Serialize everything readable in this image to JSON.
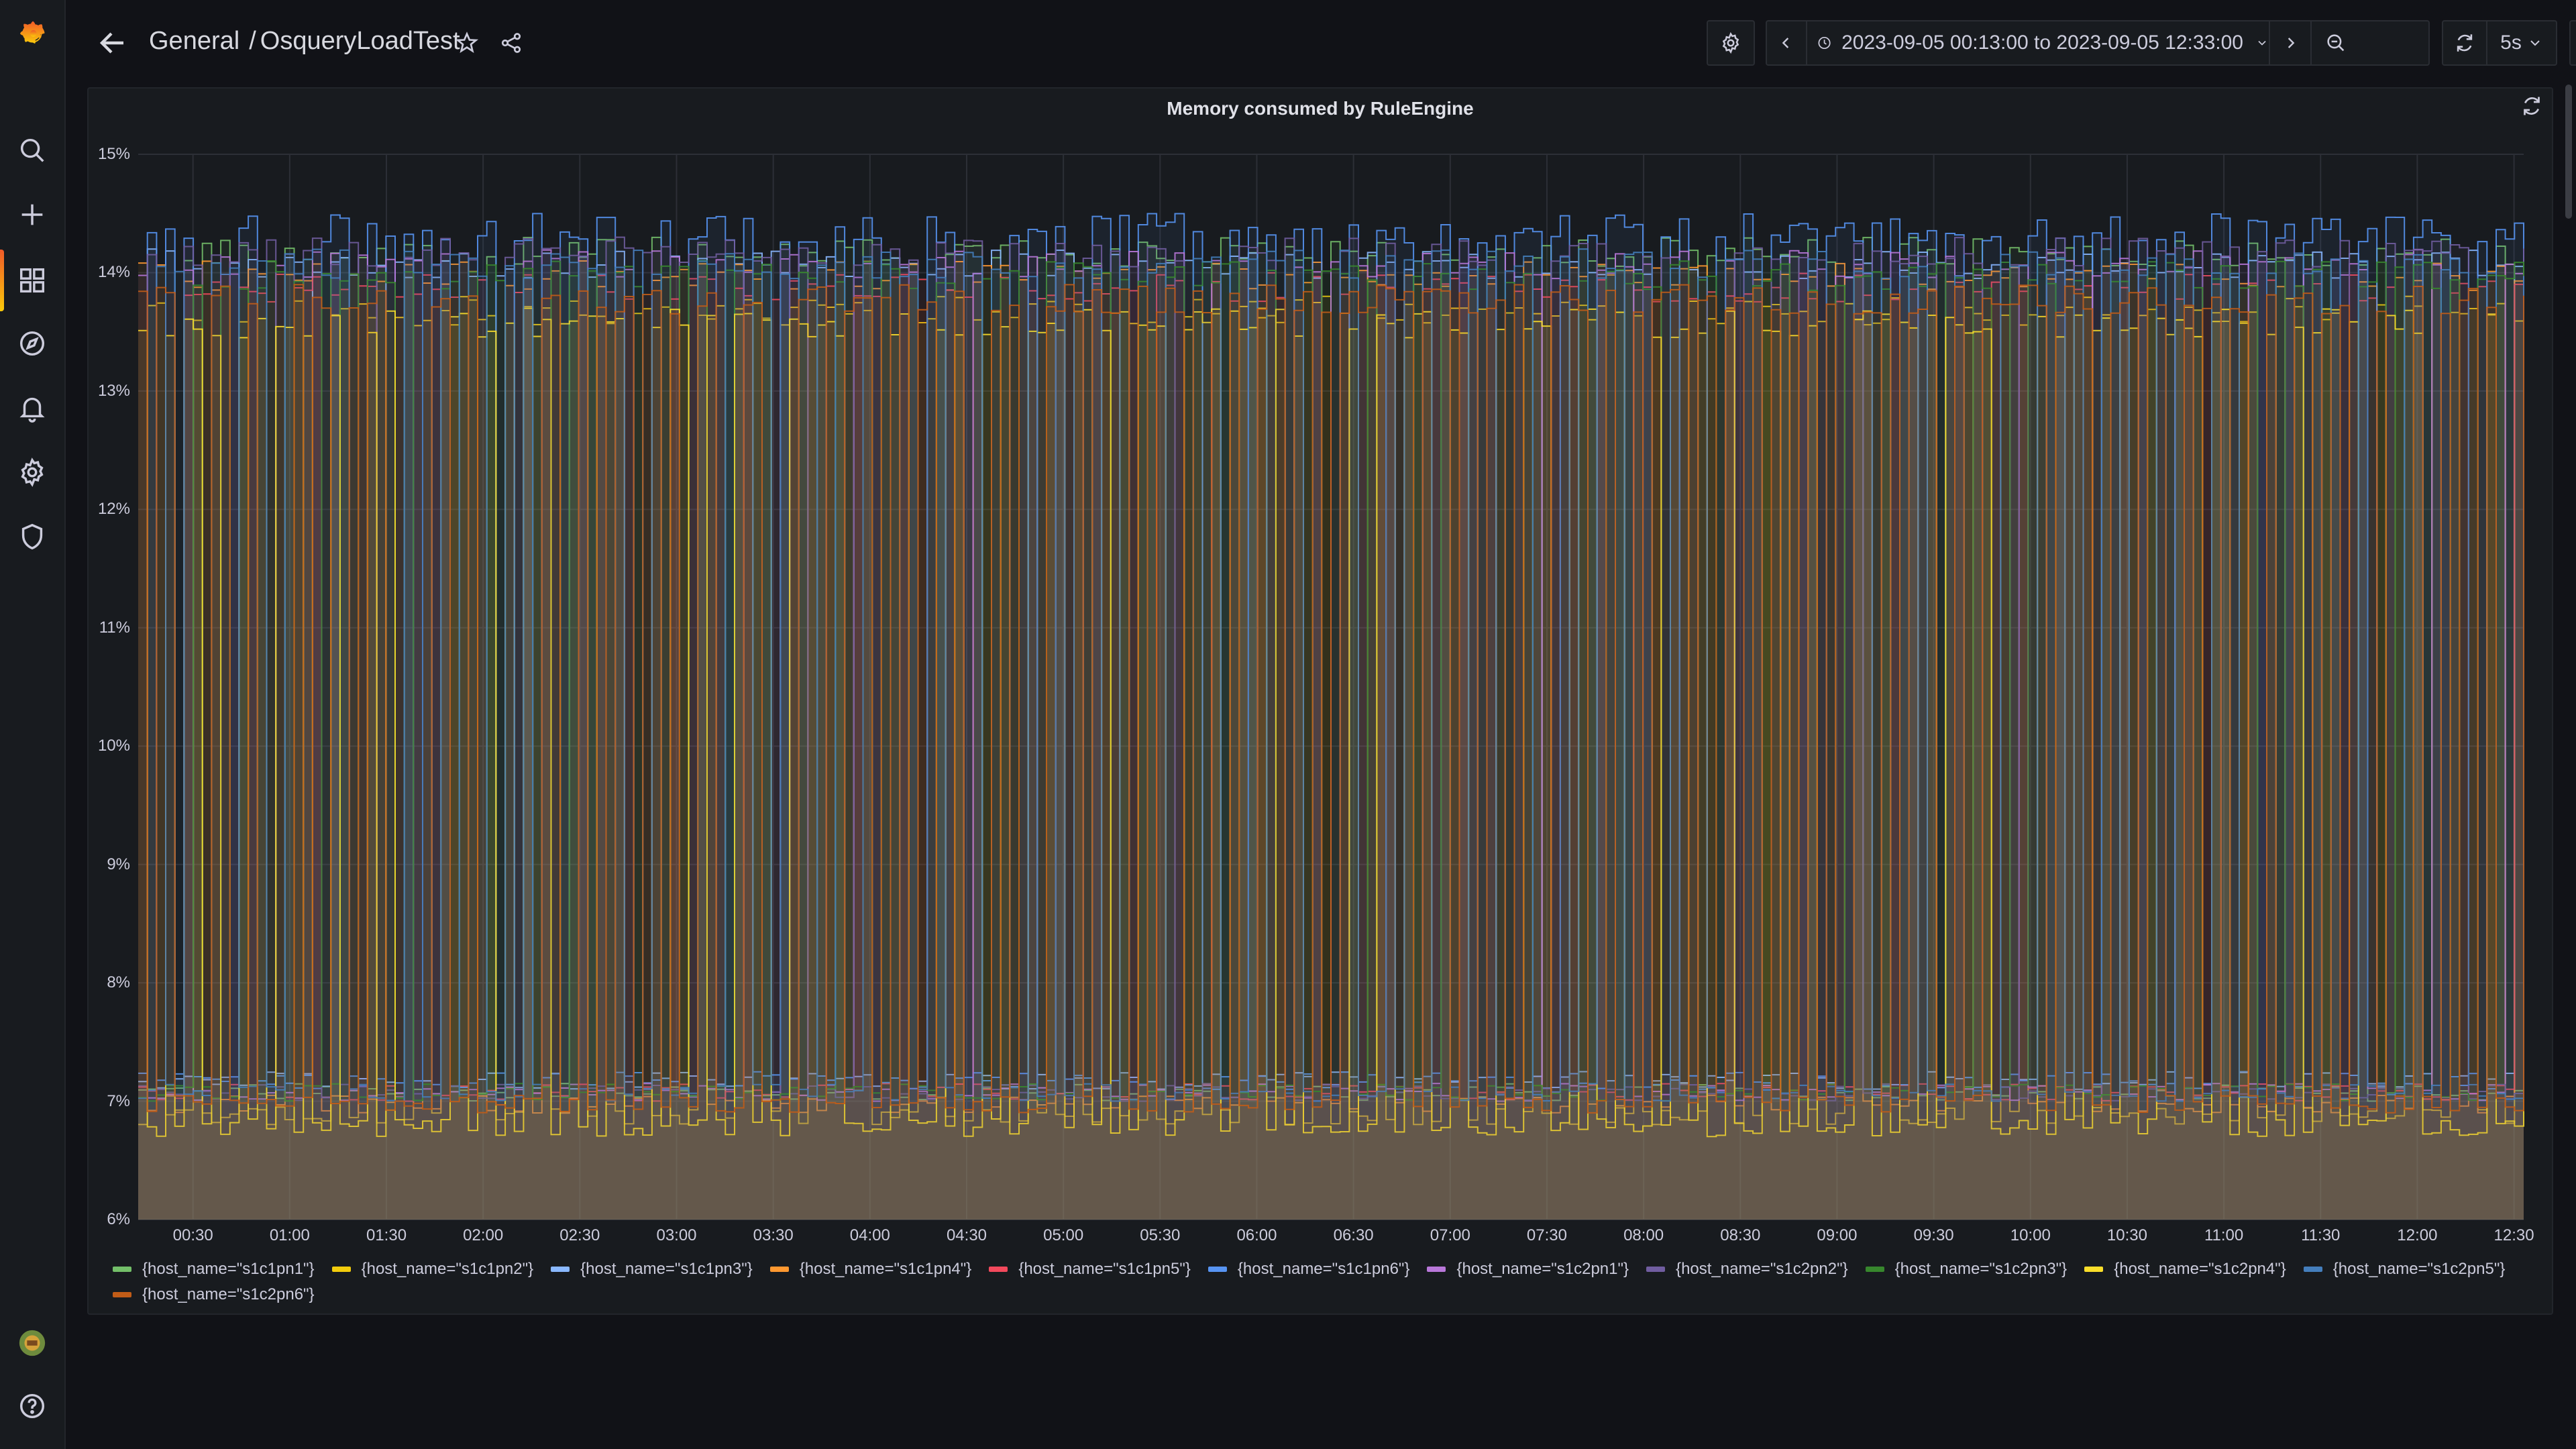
{
  "breadcrumb": {
    "folder": "General",
    "separator": "/",
    "dashboard": "OsqueryLoadTest"
  },
  "time_range": {
    "label": "2023-09-05 00:13:00 to 2023-09-05 12:33:00"
  },
  "refresh_interval": "5s",
  "panel": {
    "title": "Memory consumed by RuleEngine"
  },
  "icons": {
    "logo": "grafana-logo-icon",
    "search": "search-icon",
    "create": "plus-icon",
    "dashboards": "dashboards-grid-icon",
    "explore": "compass-icon",
    "alerting": "bell-icon",
    "configuration": "gear-icon",
    "server_admin": "shield-icon",
    "help": "help-circle-icon"
  },
  "colors": {
    "background": "#111217",
    "panel": "#181b1f",
    "accent": "#f05a28"
  },
  "chart_data": {
    "type": "line",
    "title": "Memory consumed by RuleEngine",
    "x_range": [
      "00:13",
      "12:33"
    ],
    "x_ticks": [
      "00:30",
      "01:00",
      "01:30",
      "02:00",
      "02:30",
      "03:00",
      "03:30",
      "04:00",
      "04:30",
      "05:00",
      "05:30",
      "06:00",
      "06:30",
      "07:00",
      "07:30",
      "08:00",
      "08:30",
      "09:00",
      "09:30",
      "10:00",
      "10:30",
      "11:00",
      "11:30",
      "12:00",
      "12:30"
    ],
    "y_ticks": [
      "6%",
      "7%",
      "8%",
      "9%",
      "10%",
      "11%",
      "12%",
      "13%",
      "14%",
      "15%"
    ],
    "ylim": [
      6,
      15
    ],
    "grid": true,
    "legend_placement": "bottom",
    "fill": "area",
    "series": [
      {
        "name": "{host_name=\"s1c1pn1\"}",
        "color": "#73bf69",
        "low": 7.0,
        "high": 14.3
      },
      {
        "name": "{host_name=\"s1c1pn2\"}",
        "color": "#f2cc0c",
        "low": 6.8,
        "high": 13.8
      },
      {
        "name": "{host_name=\"s1c1pn3\"}",
        "color": "#8ab8ff",
        "low": 7.1,
        "high": 14.2
      },
      {
        "name": "{host_name=\"s1c1pn4\"}",
        "color": "#ff9830",
        "low": 6.9,
        "high": 14.1
      },
      {
        "name": "{host_name=\"s1c1pn5\"}",
        "color": "#f2495c",
        "low": 7.0,
        "high": 14.0
      },
      {
        "name": "{host_name=\"s1c1pn6\"}",
        "color": "#5794f2",
        "low": 7.1,
        "high": 14.5
      },
      {
        "name": "{host_name=\"s1c2pn1\"}",
        "color": "#b877d9",
        "low": 7.0,
        "high": 14.2
      },
      {
        "name": "{host_name=\"s1c2pn2\"}",
        "color": "#705da0",
        "low": 7.0,
        "high": 14.3
      },
      {
        "name": "{host_name=\"s1c2pn3\"}",
        "color": "#37872d",
        "low": 7.0,
        "high": 14.1
      },
      {
        "name": "{host_name=\"s1c2pn4\"}",
        "color": "#fade2a",
        "low": 6.7,
        "high": 13.7
      },
      {
        "name": "{host_name=\"s1c2pn5\"}",
        "color": "#447ebc",
        "low": 7.0,
        "high": 14.2
      },
      {
        "name": "{host_name=\"s1c2pn6\"}",
        "color": "#c15c17",
        "low": 6.9,
        "high": 13.9
      }
    ]
  }
}
